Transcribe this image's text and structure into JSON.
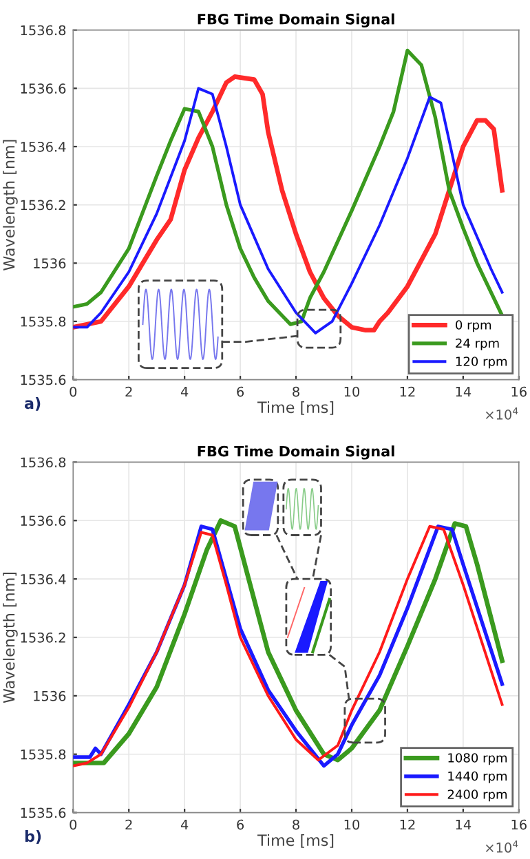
{
  "chart_data": [
    {
      "type": "line",
      "title": "FBG Time Domain Signal",
      "xlabel": "Time [ms]",
      "ylabel": "Wavelength [nm]",
      "xlim": [
        0,
        16
      ],
      "xticks": [
        0,
        2,
        4,
        6,
        8,
        10,
        12,
        14,
        16
      ],
      "ylim": [
        1535.6,
        1536.8
      ],
      "yticks": [
        1535.6,
        1535.8,
        1536,
        1536.2,
        1536.4,
        1536.6,
        1536.8
      ],
      "grid": true,
      "legend": "bottom right",
      "annotations": [
        "×10$^{4}$",
        "a)"
      ],
      "series": [
        {
          "name": "0 rpm",
          "color": "#ff2a2a",
          "x": [
            0,
            1,
            2,
            2.5,
            3,
            3.5,
            4,
            4.5,
            5,
            5.5,
            5.8,
            6.5,
            6.8,
            7,
            7.5,
            8,
            8.5,
            9,
            9.5,
            10,
            10.5,
            10.8,
            11,
            11.3,
            12,
            13,
            13.5,
            14,
            14.5,
            14.8,
            15.1,
            15.4
          ],
          "values": [
            1535.78,
            1535.8,
            1535.92,
            1536.0,
            1536.08,
            1536.15,
            1536.32,
            1536.43,
            1536.52,
            1536.62,
            1536.64,
            1536.63,
            1536.58,
            1536.45,
            1536.25,
            1536.1,
            1535.97,
            1535.88,
            1535.82,
            1535.78,
            1535.77,
            1535.77,
            1535.8,
            1535.83,
            1535.92,
            1536.1,
            1536.25,
            1536.4,
            1536.49,
            1536.49,
            1536.46,
            1536.25
          ]
        },
        {
          "name": "24 rpm",
          "color": "#3a9a1e",
          "x": [
            0,
            0.5,
            1,
            2,
            3,
            3.5,
            4,
            4.5,
            5,
            5.5,
            6,
            6.5,
            7,
            7.5,
            7.8,
            8.2,
            8.5,
            9,
            10,
            11,
            11.5,
            12,
            12.5,
            13,
            13.5,
            14,
            14.5,
            15,
            15.4
          ],
          "values": [
            1535.85,
            1535.86,
            1535.9,
            1536.05,
            1536.3,
            1536.42,
            1536.53,
            1536.52,
            1536.4,
            1536.2,
            1536.05,
            1535.95,
            1535.87,
            1535.82,
            1535.79,
            1535.8,
            1535.88,
            1535.97,
            1536.18,
            1536.4,
            1536.52,
            1536.73,
            1536.68,
            1536.5,
            1536.25,
            1536.12,
            1536.0,
            1535.9,
            1535.82
          ]
        },
        {
          "name": "120 rpm",
          "color": "#1a1aff",
          "x": [
            0,
            0.5,
            1,
            2,
            3,
            4,
            4.5,
            5,
            5.5,
            6,
            7,
            8,
            8.7,
            9.3,
            10,
            11,
            12,
            12.8,
            13.2,
            13.5,
            14,
            15,
            15.4
          ],
          "values": [
            1535.78,
            1535.78,
            1535.83,
            1535.97,
            1536.17,
            1536.42,
            1536.6,
            1536.58,
            1536.4,
            1536.2,
            1535.98,
            1535.83,
            1535.76,
            1535.8,
            1535.93,
            1536.13,
            1536.36,
            1536.57,
            1536.55,
            1536.42,
            1536.2,
            1535.98,
            1535.9
          ]
        }
      ]
    },
    {
      "type": "line",
      "title": "FBG Time Domain Signal",
      "xlabel": "Time [ms]",
      "ylabel": "Wavelength [nm]",
      "xlim": [
        0,
        16
      ],
      "xticks": [
        0,
        2,
        4,
        6,
        8,
        10,
        12,
        14,
        16
      ],
      "ylim": [
        1535.6,
        1536.8
      ],
      "yticks": [
        1535.6,
        1535.8,
        1536,
        1536.2,
        1536.4,
        1536.6,
        1536.8
      ],
      "grid": true,
      "legend": "bottom right",
      "annotations": [
        "×10$^{4}$",
        "b)"
      ],
      "series": [
        {
          "name": "1080 rpm",
          "color": "#3a9a1e",
          "x": [
            0,
            1.1,
            2,
            3,
            4,
            4.8,
            5.3,
            5.8,
            6.3,
            7,
            8,
            9,
            9.5,
            10,
            11,
            12,
            13,
            13.7,
            14.1,
            14.5,
            15.4
          ],
          "values": [
            1535.77,
            1535.77,
            1535.87,
            1536.03,
            1536.28,
            1536.5,
            1536.6,
            1536.58,
            1536.4,
            1536.15,
            1535.95,
            1535.8,
            1535.78,
            1535.82,
            1535.95,
            1536.17,
            1536.4,
            1536.59,
            1536.58,
            1536.45,
            1536.12
          ]
        },
        {
          "name": "1440 rpm",
          "color": "#1a1aff",
          "x": [
            0,
            0.6,
            0.8,
            1,
            2,
            3,
            4,
            4.6,
            5,
            5.5,
            6,
            7,
            8,
            9,
            9.5,
            10,
            11,
            12,
            13.1,
            13.6,
            14,
            15.4
          ],
          "values": [
            1535.79,
            1535.79,
            1535.82,
            1535.8,
            1535.97,
            1536.15,
            1536.38,
            1536.58,
            1536.57,
            1536.4,
            1536.23,
            1536.02,
            1535.88,
            1535.76,
            1535.8,
            1535.9,
            1536.07,
            1536.3,
            1536.58,
            1536.57,
            1536.45,
            1536.04
          ]
        },
        {
          "name": "2400 rpm",
          "color": "#ff1a1a",
          "x": [
            0,
            0.5,
            1,
            2,
            3,
            4,
            4.6,
            5,
            5.5,
            6,
            7,
            8,
            8.8,
            9.5,
            10,
            11,
            12,
            12.8,
            13.3,
            14,
            15.4
          ],
          "values": [
            1535.76,
            1535.77,
            1535.8,
            1535.96,
            1536.15,
            1536.38,
            1536.56,
            1536.55,
            1536.38,
            1536.2,
            1536.0,
            1535.85,
            1535.78,
            1535.83,
            1535.95,
            1536.15,
            1536.4,
            1536.58,
            1536.57,
            1536.38,
            1535.97
          ]
        }
      ]
    }
  ]
}
